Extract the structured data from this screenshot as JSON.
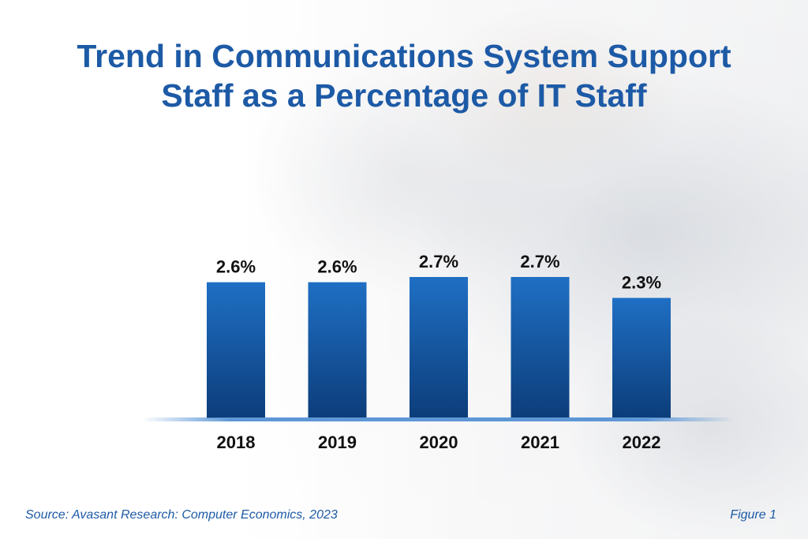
{
  "chart_data": {
    "type": "bar",
    "title_lines": [
      "Trend in Communications System Support",
      "Staff as a Percentage of IT Staff"
    ],
    "categories": [
      "2018",
      "2019",
      "2020",
      "2021",
      "2022"
    ],
    "values": [
      2.6,
      2.6,
      2.7,
      2.7,
      2.3
    ],
    "value_labels": [
      "2.6%",
      "2.6%",
      "2.7%",
      "2.7%",
      "2.3%"
    ],
    "xlabel": "",
    "ylabel": "",
    "ylim": [
      0,
      3.3
    ],
    "grid": false,
    "legend": "none"
  },
  "footer": {
    "source": "Source: Avasant Research: Computer Economics, 2023",
    "figure": "Figure 1"
  },
  "colors": {
    "title": "#1d5aa6",
    "bar_top": "#1f6fc4",
    "bar_bottom": "#0c3d7a",
    "baseline": "#5d97d6"
  }
}
